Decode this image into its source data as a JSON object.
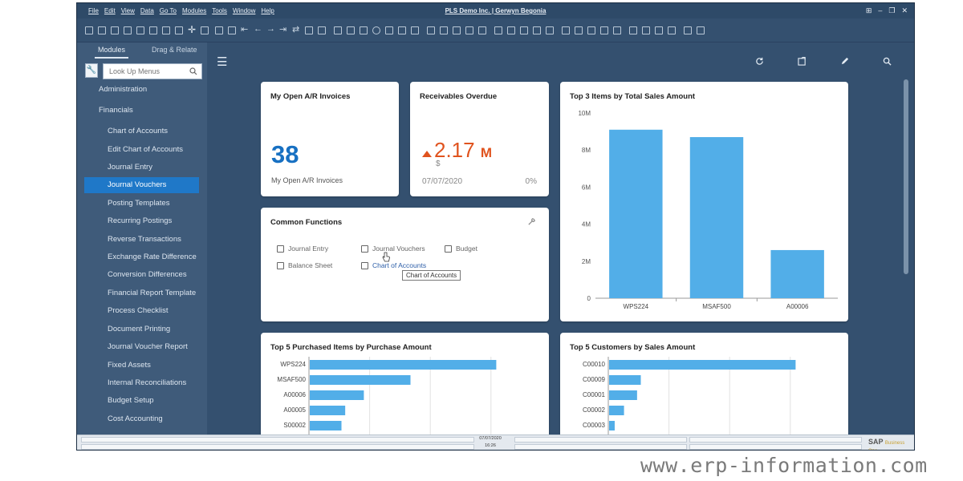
{
  "menubar": {
    "items": [
      "File",
      "Edit",
      "View",
      "Data",
      "Go To",
      "Modules",
      "Tools",
      "Window",
      "Help"
    ],
    "title": "PLS Demo Inc. | Gerwyn Begonia"
  },
  "left_panel": {
    "tabs": [
      "Modules",
      "Drag & Relate"
    ],
    "lookup_placeholder": "Look Up Menus",
    "top_items": [
      "Administration",
      "Financials"
    ],
    "sub_items": [
      "Chart of Accounts",
      "Edit Chart of Accounts",
      "Journal Entry",
      "Journal Vouchers",
      "Posting Templates",
      "Recurring Postings",
      "Reverse Transactions",
      "Exchange Rate Difference",
      "Conversion Differences",
      "Financial Report Template",
      "Process Checklist",
      "Document Printing",
      "Journal Voucher Report",
      "Fixed Assets",
      "Internal Reconciliations",
      "Budget Setup",
      "Cost Accounting"
    ],
    "active_item": "Journal Vouchers"
  },
  "cards": {
    "open_ar": {
      "title": "My Open A/R Invoices",
      "value": "38",
      "caption": "My Open A/R Invoices"
    },
    "overdue": {
      "title": "Receivables Overdue",
      "value": "2.17",
      "unit": "M",
      "currency": "$",
      "date": "07/07/2020",
      "percent": "0%"
    },
    "common": {
      "title": "Common Functions",
      "functions": [
        "Journal Entry",
        "Journal Vouchers",
        "Budget",
        "Balance Sheet",
        "Chart of Accounts"
      ],
      "tooltip": "Chart of Accounts"
    },
    "top3": {
      "title": "Top 3 Items by Total Sales Amount"
    },
    "top5_purchased": {
      "title": "Top 5 Purchased Items by Purchase Amount"
    },
    "top5_customers": {
      "title": "Top 5 Customers by Sales Amount"
    }
  },
  "statusbar": {
    "date": "07/07/2020",
    "time": "16:26",
    "logo": "SAP",
    "logo_sub": "Business One"
  },
  "watermark": "www.erp-information.com",
  "colors": {
    "bar": "#52aee8",
    "accent_blue": "#1770c2",
    "overdue": "#e0531e",
    "active_nav": "#1f78c8"
  },
  "chart_data": [
    {
      "type": "bar",
      "title": "Top 3 Items by Total Sales Amount",
      "categories": [
        "WPS224",
        "MSAF500",
        "A00006"
      ],
      "values": [
        9.1,
        8.7,
        2.6
      ],
      "value_unit": "M",
      "yticks": [
        "0",
        "2M",
        "4M",
        "6M",
        "8M",
        "10M"
      ],
      "ylim": [
        0,
        10
      ],
      "grid": false
    },
    {
      "type": "bar",
      "orientation": "horizontal",
      "title": "Top 5 Purchased Items by Purchase Amount",
      "categories": [
        "WPS224",
        "MSAF500",
        "A00006",
        "A00005",
        "S00002"
      ],
      "values": [
        100,
        54,
        29,
        19,
        17
      ],
      "grid": true
    },
    {
      "type": "bar",
      "orientation": "horizontal",
      "title": "Top 5 Customers by Sales Amount",
      "categories": [
        "C00010",
        "C00009",
        "C00001",
        "C00002",
        "C00003"
      ],
      "values": [
        100,
        17,
        15,
        8,
        3
      ],
      "grid": true
    }
  ]
}
